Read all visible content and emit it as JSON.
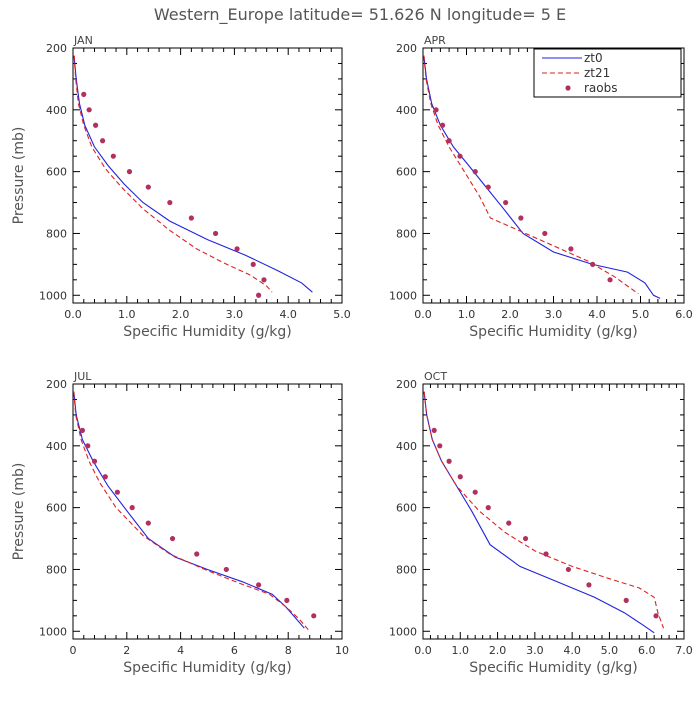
{
  "title": "Western_Europe  latitude= 51.626 N longitude= 5 E",
  "chart_data": [
    {
      "type": "line",
      "panel": "JAN",
      "xlabel": "Specific Humidity (g/kg)",
      "ylabel": "Pressure (mb)",
      "xlim": [
        0,
        5
      ],
      "xticks": [
        "0.0",
        "1.0",
        "2.0",
        "3.0",
        "4.0",
        "5.0"
      ],
      "ylim": [
        200,
        1025
      ],
      "yticks": [
        "200",
        "400",
        "600",
        "800",
        "1000"
      ],
      "series": [
        {
          "name": "zt0",
          "style": "line",
          "color": "#2222dd",
          "points": [
            [
              0.02,
              225
            ],
            [
              0.06,
              300
            ],
            [
              0.12,
              380
            ],
            [
              0.22,
              450
            ],
            [
              0.4,
              520
            ],
            [
              0.65,
              580
            ],
            [
              0.95,
              640
            ],
            [
              1.3,
              700
            ],
            [
              1.8,
              760
            ],
            [
              2.5,
              820
            ],
            [
              3.2,
              870
            ],
            [
              3.8,
              920
            ],
            [
              4.25,
              960
            ],
            [
              4.45,
              990
            ]
          ]
        },
        {
          "name": "zt21",
          "style": "dashed",
          "color": "#dd2222",
          "points": [
            [
              0.02,
              225
            ],
            [
              0.05,
              300
            ],
            [
              0.1,
              380
            ],
            [
              0.2,
              450
            ],
            [
              0.35,
              520
            ],
            [
              0.6,
              590
            ],
            [
              0.9,
              650
            ],
            [
              1.3,
              720
            ],
            [
              1.8,
              790
            ],
            [
              2.3,
              850
            ],
            [
              2.8,
              895
            ],
            [
              3.3,
              935
            ],
            [
              3.6,
              970
            ],
            [
              3.7,
              990
            ]
          ]
        },
        {
          "name": "raobs",
          "style": "dots",
          "color": "#b03060",
          "points": [
            [
              0.2,
              350
            ],
            [
              0.3,
              400
            ],
            [
              0.42,
              450
            ],
            [
              0.55,
              500
            ],
            [
              0.75,
              550
            ],
            [
              1.05,
              600
            ],
            [
              1.4,
              650
            ],
            [
              1.8,
              700
            ],
            [
              2.2,
              750
            ],
            [
              2.65,
              800
            ],
            [
              3.05,
              850
            ],
            [
              3.35,
              900
            ],
            [
              3.55,
              950
            ],
            [
              3.45,
              1000
            ]
          ]
        }
      ]
    },
    {
      "type": "line",
      "panel": "APR",
      "xlabel": "Specific Humidity (g/kg)",
      "ylabel": "",
      "xlim": [
        0,
        6
      ],
      "xticks": [
        "0.0",
        "1.0",
        "2.0",
        "3.0",
        "4.0",
        "5.0",
        "6.0"
      ],
      "ylim": [
        200,
        1025
      ],
      "yticks": [
        "200",
        "400",
        "600",
        "800",
        "1000"
      ],
      "legend": {
        "placement": "top-right",
        "entries": [
          "zt0",
          "zt21",
          "raobs"
        ]
      },
      "series": [
        {
          "name": "zt0",
          "style": "line",
          "color": "#2222dd",
          "points": [
            [
              0.02,
              225
            ],
            [
              0.08,
              300
            ],
            [
              0.2,
              380
            ],
            [
              0.4,
              450
            ],
            [
              0.7,
              520
            ],
            [
              1.05,
              580
            ],
            [
              1.45,
              650
            ],
            [
              1.85,
              720
            ],
            [
              2.3,
              800
            ],
            [
              3.0,
              860
            ],
            [
              3.9,
              900
            ],
            [
              4.7,
              925
            ],
            [
              5.1,
              960
            ],
            [
              5.3,
              1000
            ],
            [
              5.45,
              1010
            ]
          ]
        },
        {
          "name": "zt21",
          "style": "dashed",
          "color": "#dd2222",
          "points": [
            [
              0.02,
              225
            ],
            [
              0.07,
              300
            ],
            [
              0.18,
              380
            ],
            [
              0.35,
              450
            ],
            [
              0.6,
              520
            ],
            [
              0.95,
              600
            ],
            [
              1.3,
              680
            ],
            [
              1.55,
              750
            ],
            [
              2.2,
              790
            ],
            [
              3.0,
              840
            ],
            [
              3.8,
              890
            ],
            [
              4.4,
              940
            ],
            [
              4.8,
              980
            ],
            [
              4.95,
              995
            ]
          ]
        },
        {
          "name": "raobs",
          "style": "dots",
          "color": "#b03060",
          "points": [
            [
              0.3,
              400
            ],
            [
              0.45,
              450
            ],
            [
              0.6,
              500
            ],
            [
              0.85,
              550
            ],
            [
              1.2,
              600
            ],
            [
              1.5,
              650
            ],
            [
              1.9,
              700
            ],
            [
              2.25,
              750
            ],
            [
              2.8,
              800
            ],
            [
              3.4,
              850
            ],
            [
              3.9,
              900
            ],
            [
              4.3,
              950
            ]
          ]
        }
      ]
    },
    {
      "type": "line",
      "panel": "JUL",
      "xlabel": "Specific Humidity (g/kg)",
      "ylabel": "Pressure (mb)",
      "xlim": [
        0,
        10
      ],
      "xticks": [
        "0",
        "2",
        "4",
        "6",
        "8",
        "10"
      ],
      "ylim": [
        200,
        1025
      ],
      "yticks": [
        "200",
        "400",
        "600",
        "800",
        "1000"
      ],
      "series": [
        {
          "name": "zt0",
          "style": "line",
          "color": "#2222dd",
          "points": [
            [
              0.03,
              225
            ],
            [
              0.12,
              300
            ],
            [
              0.35,
              380
            ],
            [
              0.75,
              450
            ],
            [
              1.3,
              530
            ],
            [
              2.0,
              610
            ],
            [
              2.8,
              700
            ],
            [
              3.8,
              760
            ],
            [
              5.0,
              800
            ],
            [
              6.3,
              840
            ],
            [
              7.4,
              880
            ],
            [
              7.9,
              920
            ],
            [
              8.3,
              960
            ],
            [
              8.6,
              990
            ]
          ]
        },
        {
          "name": "zt21",
          "style": "dashed",
          "color": "#dd2222",
          "points": [
            [
              0.03,
              225
            ],
            [
              0.1,
              300
            ],
            [
              0.3,
              380
            ],
            [
              0.6,
              450
            ],
            [
              1.0,
              520
            ],
            [
              1.6,
              600
            ],
            [
              2.6,
              690
            ],
            [
              3.6,
              750
            ],
            [
              4.9,
              800
            ],
            [
              6.2,
              845
            ],
            [
              7.3,
              880
            ],
            [
              7.9,
              920
            ],
            [
              8.4,
              960
            ],
            [
              8.8,
              1000
            ]
          ]
        },
        {
          "name": "raobs",
          "style": "dots",
          "color": "#b03060",
          "points": [
            [
              0.35,
              350
            ],
            [
              0.55,
              400
            ],
            [
              0.8,
              450
            ],
            [
              1.2,
              500
            ],
            [
              1.65,
              550
            ],
            [
              2.2,
              600
            ],
            [
              2.8,
              650
            ],
            [
              3.7,
              700
            ],
            [
              4.6,
              750
            ],
            [
              5.7,
              800
            ],
            [
              6.9,
              850
            ],
            [
              7.95,
              900
            ],
            [
              8.95,
              950
            ]
          ]
        }
      ]
    },
    {
      "type": "line",
      "panel": "OCT",
      "xlabel": "Specific Humidity (g/kg)",
      "ylabel": "",
      "xlim": [
        0,
        7
      ],
      "xticks": [
        "0.0",
        "1.0",
        "2.0",
        "3.0",
        "4.0",
        "5.0",
        "6.0",
        "7.0"
      ],
      "ylim": [
        200,
        1025
      ],
      "yticks": [
        "200",
        "400",
        "600",
        "800",
        "1000"
      ],
      "series": [
        {
          "name": "zt0",
          "style": "line",
          "color": "#2222dd",
          "points": [
            [
              0.03,
              225
            ],
            [
              0.1,
              300
            ],
            [
              0.25,
              380
            ],
            [
              0.5,
              450
            ],
            [
              0.9,
              530
            ],
            [
              1.3,
              610
            ],
            [
              1.8,
              720
            ],
            [
              2.6,
              790
            ],
            [
              3.6,
              840
            ],
            [
              4.6,
              890
            ],
            [
              5.4,
              940
            ],
            [
              5.9,
              980
            ],
            [
              6.2,
              1005
            ]
          ]
        },
        {
          "name": "zt21",
          "style": "dashed",
          "color": "#dd2222",
          "points": [
            [
              0.03,
              225
            ],
            [
              0.1,
              300
            ],
            [
              0.25,
              380
            ],
            [
              0.5,
              450
            ],
            [
              0.9,
              530
            ],
            [
              1.5,
              610
            ],
            [
              2.2,
              680
            ],
            [
              3.0,
              740
            ],
            [
              4.0,
              790
            ],
            [
              5.0,
              830
            ],
            [
              5.8,
              860
            ],
            [
              6.2,
              890
            ],
            [
              6.3,
              940
            ],
            [
              6.45,
              990
            ]
          ]
        },
        {
          "name": "raobs",
          "style": "dots",
          "color": "#b03060",
          "points": [
            [
              0.3,
              350
            ],
            [
              0.45,
              400
            ],
            [
              0.7,
              450
            ],
            [
              1.0,
              500
            ],
            [
              1.4,
              550
            ],
            [
              1.75,
              600
            ],
            [
              2.3,
              650
            ],
            [
              2.75,
              700
            ],
            [
              3.3,
              750
            ],
            [
              3.9,
              800
            ],
            [
              4.45,
              850
            ],
            [
              5.45,
              900
            ],
            [
              6.25,
              950
            ]
          ]
        }
      ]
    }
  ]
}
